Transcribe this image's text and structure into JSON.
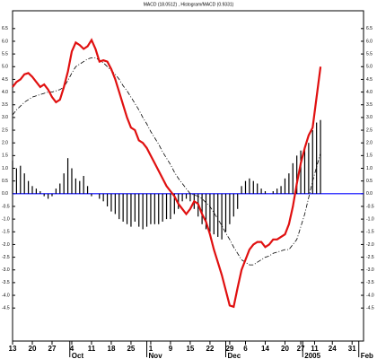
{
  "chart_data": {
    "type": "macd",
    "title": "MACD (18.0512) , Histogram/MACD (0.9331)",
    "x": [
      -2,
      -1,
      0,
      1,
      2,
      3,
      4,
      5,
      6,
      7,
      8,
      9,
      10,
      11,
      12,
      13,
      14,
      15,
      16,
      17,
      18,
      19,
      20,
      21,
      22,
      23,
      24,
      25,
      26,
      27,
      28,
      29,
      30,
      31,
      32,
      33,
      34,
      35,
      36,
      37,
      38,
      39,
      40,
      41,
      42,
      43,
      44,
      45,
      46,
      47,
      48,
      49,
      50,
      51,
      52,
      53,
      54,
      55,
      56,
      57,
      58,
      59,
      60,
      61,
      62,
      63,
      64,
      65,
      66,
      67,
      68,
      69,
      70,
      71,
      72,
      73,
      74,
      75,
      76
    ],
    "series": [
      {
        "name": "MACD",
        "color": "#e01010",
        "style": "line",
        "values": [
          4.2,
          4.4,
          4.5,
          4.7,
          4.75,
          4.6,
          4.4,
          4.2,
          4.3,
          4.1,
          3.8,
          3.6,
          3.7,
          4.2,
          4.8,
          5.6,
          5.95,
          5.85,
          5.7,
          5.8,
          6.05,
          5.7,
          5.2,
          5.25,
          5.2,
          4.9,
          4.5,
          4.0,
          3.5,
          3.0,
          2.6,
          2.5,
          2.1,
          2.0,
          1.8,
          1.5,
          1.2,
          0.9,
          0.6,
          0.3,
          0.1,
          -0.1,
          -0.4,
          -0.6,
          -0.8,
          -0.6,
          -0.3,
          -0.4,
          -0.8,
          -1.1,
          -1.6,
          -2.2,
          -2.7,
          -3.2,
          -3.8,
          -4.4,
          -4.45,
          -3.7,
          -3.0,
          -2.6,
          -2.2,
          -2.0,
          -1.9,
          -1.9,
          -2.1,
          -2.0,
          -1.8,
          -1.8,
          -1.7,
          -1.6,
          -1.2,
          -0.5,
          0.4,
          1.2,
          1.8,
          2.3,
          2.6,
          3.8,
          5.0
        ]
      },
      {
        "name": "Signal",
        "color": "#000000",
        "style": "dashed",
        "values": [
          3.1,
          3.3,
          3.45,
          3.6,
          3.7,
          3.8,
          3.85,
          3.9,
          3.95,
          4.0,
          4.0,
          4.05,
          4.1,
          4.2,
          4.45,
          4.75,
          5.0,
          5.1,
          5.2,
          5.3,
          5.35,
          5.35,
          5.25,
          5.15,
          5.0,
          4.85,
          4.7,
          4.5,
          4.25,
          4.05,
          3.8,
          3.55,
          3.3,
          3.0,
          2.75,
          2.45,
          2.2,
          1.95,
          1.65,
          1.4,
          1.15,
          0.85,
          0.6,
          0.4,
          0.2,
          0.0,
          -0.05,
          -0.1,
          -0.2,
          -0.35,
          -0.5,
          -0.75,
          -1.0,
          -1.25,
          -1.55,
          -1.8,
          -2.1,
          -2.35,
          -2.6,
          -2.7,
          -2.8,
          -2.8,
          -2.7,
          -2.6,
          -2.5,
          -2.45,
          -2.35,
          -2.3,
          -2.25,
          -2.2,
          -2.2,
          -2.0,
          -1.8,
          -1.3,
          -0.8,
          -0.15,
          0.5,
          1.05,
          1.6
        ]
      },
      {
        "name": "Histogram",
        "color": "#000000",
        "style": "bars",
        "values": [
          1.3,
          1.0,
          1.1,
          0.8,
          0.5,
          0.3,
          0.2,
          0.1,
          -0.1,
          -0.2,
          -0.1,
          0.2,
          0.4,
          0.8,
          1.4,
          1.0,
          0.6,
          0.5,
          0.7,
          0.3,
          -0.1,
          0.0,
          -0.2,
          -0.3,
          -0.5,
          -0.7,
          -0.8,
          -1.0,
          -1.1,
          -1.2,
          -1.3,
          -1.1,
          -1.3,
          -1.4,
          -1.3,
          -1.2,
          -1.2,
          -1.2,
          -1.1,
          -1.0,
          -1.0,
          -0.8,
          -0.6,
          -0.3,
          -0.2,
          -0.3,
          -0.6,
          -0.9,
          -1.2,
          -1.4,
          -1.5,
          -1.6,
          -1.7,
          -1.8,
          -1.5,
          -1.2,
          -0.9,
          -0.6,
          0.3,
          0.5,
          0.6,
          0.5,
          0.4,
          0.2,
          0.1,
          0.0,
          0.1,
          0.2,
          0.3,
          0.6,
          0.8,
          1.2,
          1.5,
          1.7,
          1.8,
          2.0,
          2.5,
          2.8,
          2.9
        ]
      }
    ],
    "zero_line_color": "#0000ff",
    "xlim": [
      -2,
      86.9
    ],
    "ylim": [
      -5.8,
      7.2
    ],
    "xticks": [
      {
        "value": -2,
        "label": "13"
      },
      {
        "value": 3,
        "label": "20"
      },
      {
        "value": 8,
        "label": "27"
      },
      {
        "value": 13,
        "label": "4"
      },
      {
        "value": 18,
        "label": "11"
      },
      {
        "value": 23,
        "label": "18"
      },
      {
        "value": 28,
        "label": "25"
      },
      {
        "value": 33,
        "label": "1"
      },
      {
        "value": 38,
        "label": "9"
      },
      {
        "value": 43,
        "label": "15"
      },
      {
        "value": 48,
        "label": "22"
      },
      {
        "value": 53,
        "label": "29"
      },
      {
        "value": 57,
        "label": "6"
      },
      {
        "value": 62,
        "label": "14"
      },
      {
        "value": 67,
        "label": "20"
      },
      {
        "value": 71,
        "label": "27"
      },
      {
        "value": 74.5,
        "label": "11"
      },
      {
        "value": 79,
        "label": "24"
      },
      {
        "value": 84,
        "label": "31"
      }
    ],
    "month_ticks": [
      {
        "value": 12.5,
        "label": "Oct"
      },
      {
        "value": 32,
        "label": "Nov"
      },
      {
        "value": 52,
        "label": "Dec"
      },
      {
        "value": 71.5,
        "label": "2005"
      },
      {
        "value": 85.7,
        "label": "Feb"
      }
    ],
    "yticks": [
      -4.5,
      {
        "value": -4,
        "label": "-4.0"
      },
      -3.5,
      {
        "value": -3,
        "label": "-3.0"
      },
      -2.5,
      {
        "value": -2,
        "label": "-2.0"
      },
      -1.5,
      {
        "value": -1,
        "label": "-1.0"
      },
      -0.5,
      {
        "value": 0,
        "label": "0.0"
      },
      0.5,
      {
        "value": 1,
        "label": "1.0"
      },
      1.5,
      {
        "value": 2,
        "label": "2.0"
      },
      2.5,
      {
        "value": 3,
        "label": "3.0"
      },
      3.5,
      {
        "value": 4,
        "label": "4.0"
      },
      4.5,
      {
        "value": 5,
        "label": "5.0"
      },
      5.5,
      {
        "value": 6,
        "label": "6.0"
      },
      6.5
    ]
  }
}
